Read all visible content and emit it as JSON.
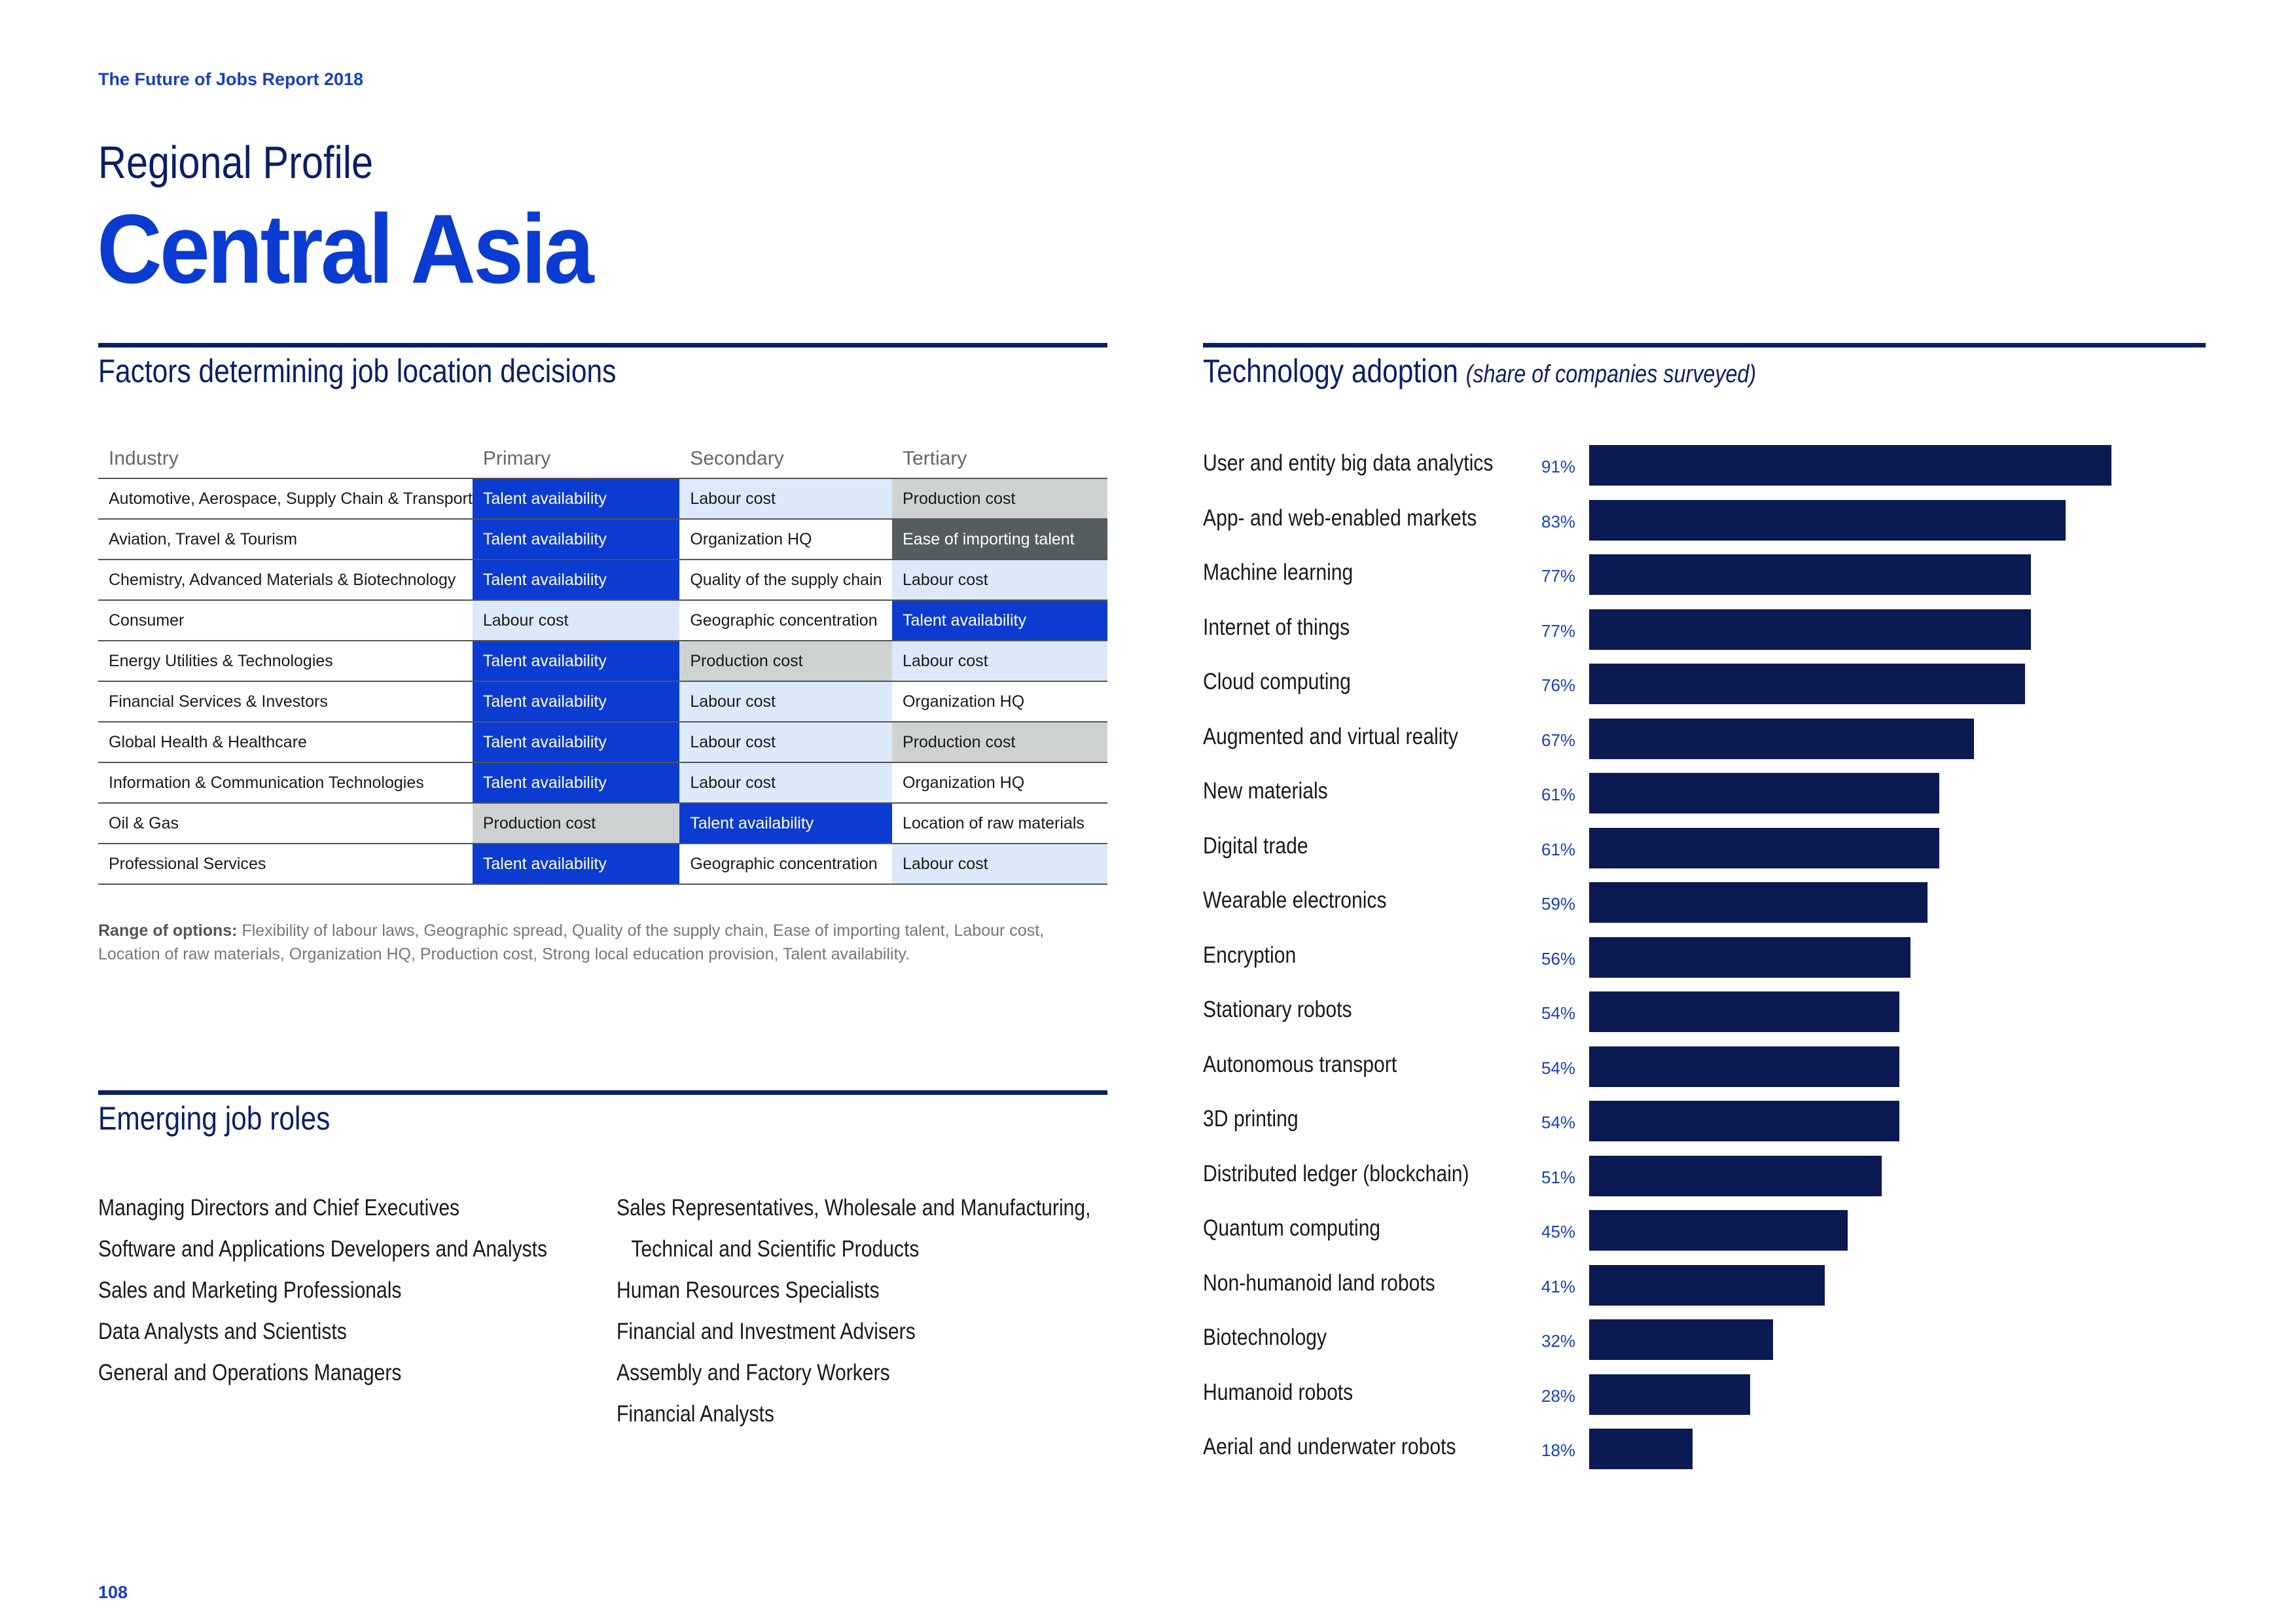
{
  "header": {
    "report": "The Future of Jobs Report 2018",
    "subtitle": "Regional Profile",
    "title": "Central Asia"
  },
  "factors": {
    "heading": "Factors determining job location decisions",
    "columns": [
      "Industry",
      "Primary",
      "Secondary",
      "Tertiary"
    ],
    "rows": [
      {
        "industry": "Automotive, Aerospace, Supply Chain & Transport",
        "primary": "Talent availability",
        "secondary": "Labour cost",
        "tertiary": "Production cost"
      },
      {
        "industry": "Aviation, Travel & Tourism",
        "primary": "Talent availability",
        "secondary": "Organization HQ",
        "tertiary": "Ease of importing talent"
      },
      {
        "industry": "Chemistry, Advanced Materials & Biotechnology",
        "primary": "Talent availability",
        "secondary": "Quality of the supply chain",
        "tertiary": "Labour cost"
      },
      {
        "industry": "Consumer",
        "primary": "Labour cost",
        "secondary": "Geographic concentration",
        "tertiary": "Talent availability"
      },
      {
        "industry": "Energy Utilities & Technologies",
        "primary": "Talent availability",
        "secondary": "Production cost",
        "tertiary": "Labour cost"
      },
      {
        "industry": "Financial Services & Investors",
        "primary": "Talent availability",
        "secondary": "Labour cost",
        "tertiary": "Organization HQ"
      },
      {
        "industry": "Global Health & Healthcare",
        "primary": "Talent availability",
        "secondary": "Labour cost",
        "tertiary": "Production cost"
      },
      {
        "industry": "Information & Communication Technologies",
        "primary": "Talent availability",
        "secondary": "Labour cost",
        "tertiary": "Organization HQ"
      },
      {
        "industry": "Oil & Gas",
        "primary": "Production cost",
        "secondary": "Talent availability",
        "tertiary": "Location of raw materials"
      },
      {
        "industry": "Professional Services",
        "primary": "Talent availability",
        "secondary": "Geographic concentration",
        "tertiary": "Labour cost"
      }
    ],
    "range_label": "Range of options:",
    "range_text": "Flexibility of labour laws, Geographic spread, Quality of the supply chain, Ease of importing talent, Labour cost, Location of raw materials, Organization HQ, Production cost, Strong local education provision, Talent availability.",
    "colors": {
      "Talent availability": "#0b3bd0",
      "Labour cost": "#dce9f8",
      "Production cost": "#ced3d2",
      "Ease of importing talent": "#555c5e"
    }
  },
  "roles": {
    "heading": "Emerging job roles",
    "col1": [
      "Managing Directors and Chief Executives",
      "Software and Applications Developers and Analysts",
      "Sales and Marketing Professionals",
      "Data Analysts and Scientists",
      "General and Operations Managers"
    ],
    "col2": [
      "Sales Representatives, Wholesale and Manufacturing,",
      "Technical and Scientific Products",
      "Human Resources Specialists",
      "Financial and Investment Advisers",
      "Assembly and Factory Workers",
      "Financial Analysts"
    ]
  },
  "tech": {
    "heading": "Technology adoption",
    "subheading": "(share of companies surveyed)"
  },
  "chart_data": {
    "type": "bar",
    "orientation": "horizontal",
    "title": "Technology adoption (share of companies surveyed)",
    "categories": [
      "User and entity big data analytics",
      "App- and web-enabled markets",
      "Machine learning",
      "Internet of things",
      "Cloud computing",
      "Augmented and virtual reality",
      "New materials",
      "Digital trade",
      "Wearable electronics",
      "Encryption",
      "Stationary robots",
      "Autonomous transport",
      "3D printing",
      "Distributed ledger (blockchain)",
      "Quantum computing",
      "Non-humanoid land robots",
      "Biotechnology",
      "Humanoid robots",
      "Aerial and underwater robots"
    ],
    "values": [
      91,
      83,
      77,
      77,
      76,
      67,
      61,
      61,
      59,
      56,
      54,
      54,
      54,
      51,
      45,
      41,
      32,
      28,
      18
    ],
    "labels": [
      "91%",
      "83%",
      "77%",
      "77%",
      "76%",
      "67%",
      "61%",
      "61%",
      "59%",
      "56%",
      "54%",
      "54%",
      "54%",
      "51%",
      "45%",
      "41%",
      "32%",
      "28%",
      "18%"
    ],
    "xlim": [
      0,
      100
    ],
    "bar_color": "#0b1a52",
    "grid": false
  },
  "page_number": "108"
}
